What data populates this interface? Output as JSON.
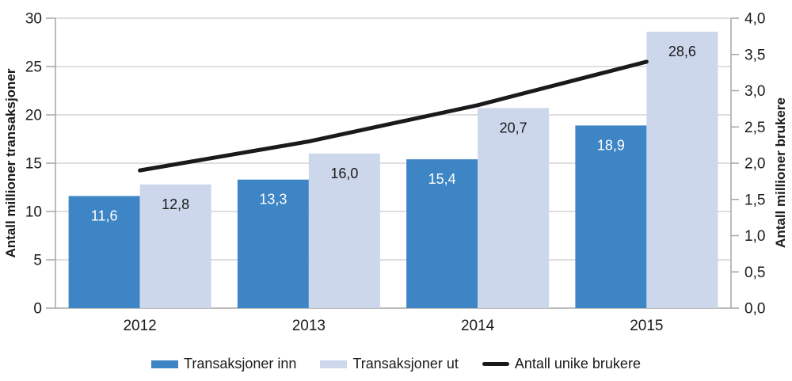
{
  "chart_data": {
    "type": "combo-bar-line",
    "categories": [
      "2012",
      "2013",
      "2014",
      "2015"
    ],
    "series": [
      {
        "name": "Transaksjoner inn",
        "type": "bar",
        "axis": "left",
        "values": [
          11.6,
          13.3,
          15.4,
          18.9
        ],
        "labels": [
          "11,6",
          "13,3",
          "15,4",
          "18,9"
        ],
        "color": "#3d85c4",
        "label_color": "#ffffff"
      },
      {
        "name": "Transaksjoner ut",
        "type": "bar",
        "axis": "left",
        "values": [
          12.8,
          16.0,
          20.7,
          28.6
        ],
        "labels": [
          "12,8",
          "16,0",
          "20,7",
          "28,6"
        ],
        "color": "#cdd7ec",
        "label_color": "#1a1a1a"
      },
      {
        "name": "Antall unike brukere",
        "type": "line",
        "axis": "right",
        "values": [
          1.9,
          2.3,
          2.8,
          3.4
        ],
        "color": "#1a1a1a"
      }
    ],
    "left_axis": {
      "label": "Antall millioner transaksjoner",
      "min": 0,
      "max": 30,
      "step": 5,
      "tick_labels": [
        "0",
        "5",
        "10",
        "15",
        "20",
        "25",
        "30"
      ]
    },
    "right_axis": {
      "label": "Antall millioner brukere",
      "min": 0,
      "max": 4,
      "step": 0.5,
      "tick_labels": [
        "0,0",
        "0,5",
        "1,0",
        "1,5",
        "2,0",
        "2,5",
        "3,0",
        "3,5",
        "4,0"
      ]
    },
    "grid": true,
    "legend_position": "bottom",
    "colors": {
      "grid": "#c9c9c9",
      "axis": "#a6a6a6",
      "text": "#1a1a1a"
    }
  }
}
